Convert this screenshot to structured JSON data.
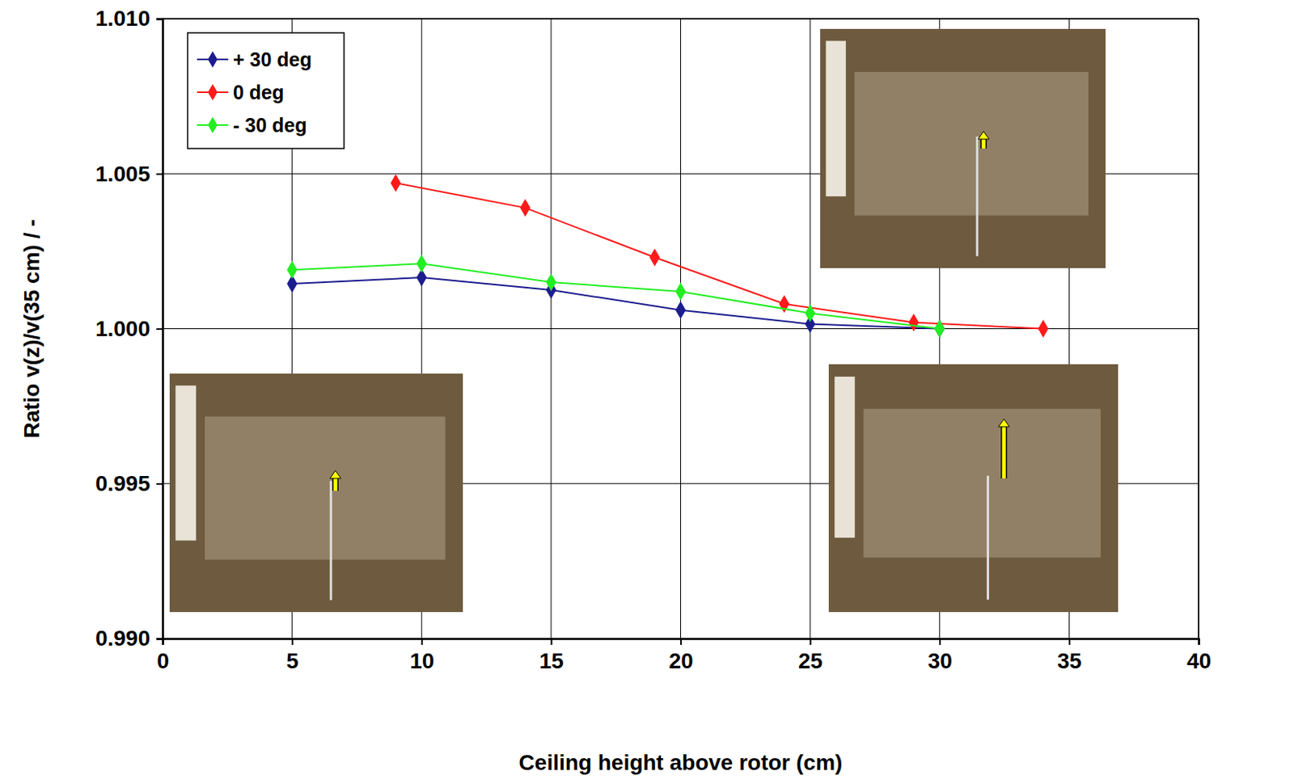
{
  "chart_data": {
    "type": "line",
    "x_label": "Ceiling height above rotor (cm)",
    "y_label": "Ratio v(z)/v(35 cm) / -",
    "xlim": [
      0,
      40
    ],
    "xticks": [
      0,
      5,
      10,
      15,
      20,
      25,
      30,
      35,
      40
    ],
    "ylim": [
      0.99,
      1.01
    ],
    "yticks": [
      {
        "value": 0.99,
        "label": "0.990"
      },
      {
        "value": 0.995,
        "label": "0.995"
      },
      {
        "value": 1.0,
        "label": "1.000"
      },
      {
        "value": 1.005,
        "label": "1.005"
      },
      {
        "value": 1.01,
        "label": "1.010"
      }
    ],
    "grid": true,
    "legend": "upper left",
    "series": [
      {
        "name": "+ 30 deg",
        "color": "#1c1c8e",
        "marker": "diamond",
        "x": [
          5,
          10,
          15,
          20,
          25,
          30
        ],
        "values": [
          1.00145,
          1.00165,
          1.00125,
          1.0006,
          1.00015,
          1.0
        ]
      },
      {
        "name": "0 deg",
        "color": "#ff1a1a",
        "marker": "diamond",
        "x": [
          9,
          14,
          19,
          24,
          29,
          34
        ],
        "values": [
          1.0047,
          1.0039,
          1.0023,
          1.0008,
          1.0002,
          1.0
        ]
      },
      {
        "name": "- 30 deg",
        "color": "#22ee22",
        "marker": "diamond",
        "x": [
          5,
          10,
          15,
          20,
          25,
          30
        ],
        "values": [
          1.0019,
          1.0021,
          1.0015,
          1.0012,
          1.0005,
          1.0
        ]
      }
    ]
  }
}
